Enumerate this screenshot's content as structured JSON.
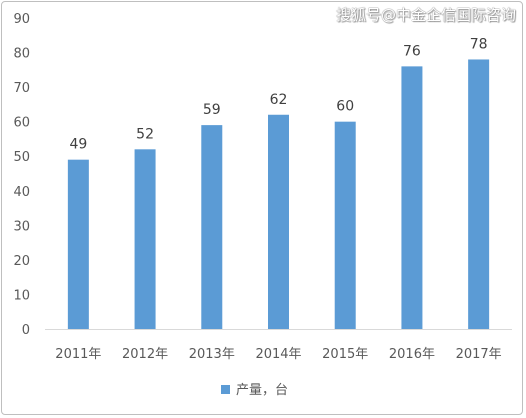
{
  "watermark": "搜狐号@中金企信国际咨询",
  "chart_data": {
    "type": "bar",
    "categories": [
      "2011年",
      "2012年",
      "2013年",
      "2014年",
      "2015年",
      "2016年",
      "2017年"
    ],
    "series": [
      {
        "name": "产量，台",
        "values": [
          49,
          52,
          59,
          62,
          60,
          76,
          78
        ]
      }
    ],
    "ylim": [
      0,
      90
    ],
    "yticks": [
      0,
      10,
      20,
      30,
      40,
      50,
      60,
      70,
      80,
      90
    ],
    "grid": false,
    "legend": "bottom-center",
    "bar_color": "#5b9bd5",
    "text_color": "#595959",
    "axis_color": "#d9d9d9"
  }
}
